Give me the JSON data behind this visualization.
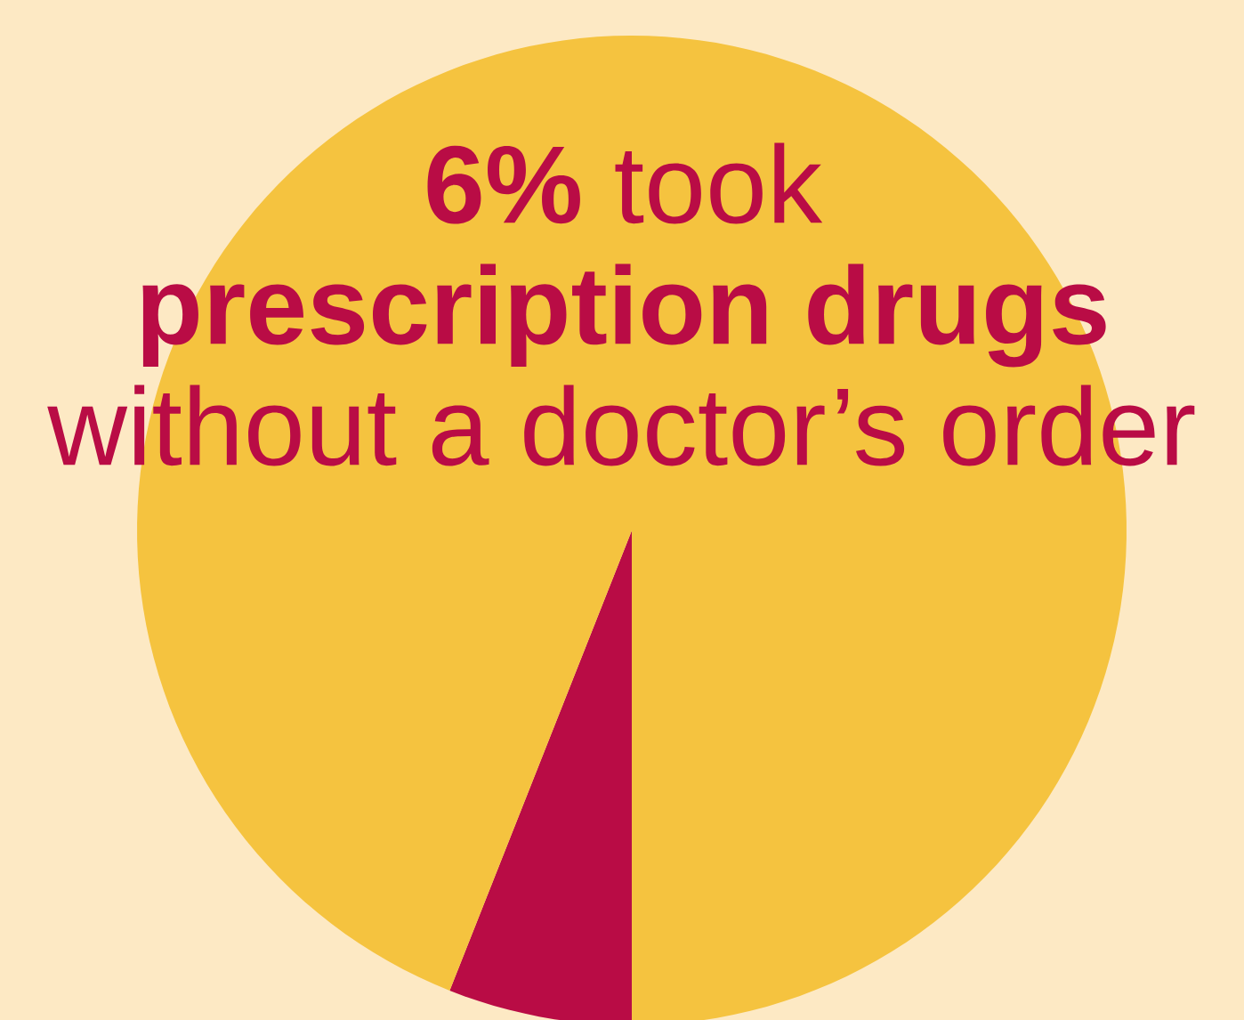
{
  "chart_data": {
    "type": "pie",
    "title": "**6%** took **prescription drugs** without a doctor’s order",
    "categories": [
      null,
      null
    ],
    "values": [
      6,
      94
    ],
    "colors": [
      "#b90c45",
      "#f5c33f"
    ]
  }
}
